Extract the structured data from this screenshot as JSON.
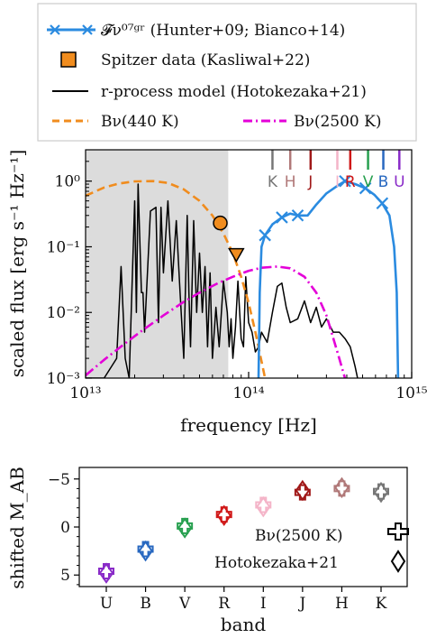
{
  "chart_data": [
    {
      "type": "line",
      "xlabel": "frequency [Hz]",
      "ylabel": "scaled flux [erg s⁻¹ Hz⁻¹]",
      "xscale": "log",
      "yscale": "log",
      "xlim": [
        10000000000000.0,
        1000000000000000.0
      ],
      "ylim": [
        0.001,
        3
      ],
      "xticks": [
        {
          "v": 10000000000000.0,
          "label": "10¹³"
        },
        {
          "v": 100000000000000.0,
          "label": "10¹⁴"
        },
        {
          "v": 1000000000000000.0,
          "label": "10¹⁵"
        }
      ],
      "yticks": [
        {
          "v": 1,
          "label": "10⁰"
        },
        {
          "v": 0.1,
          "label": "10⁻¹"
        },
        {
          "v": 0.01,
          "label": "10⁻²"
        },
        {
          "v": 0.001,
          "label": "10⁻³"
        }
      ],
      "shaded_region": {
        "x": [
          10000000000000.0,
          75000000000000.0
        ],
        "color": "#dcdcdc"
      },
      "legend": {
        "placement": "top",
        "entries": [
          {
            "label": "𝓕ν⁰⁷ᵍʳ (Hunter+09; Bianco+14)",
            "color": "#2b8be0",
            "style": "line-x"
          },
          {
            "label": "Spitzer data (Kasliwal+22)",
            "color": "#f08c1e",
            "style": "marker-square"
          },
          {
            "label": "r-process model (Hotokezaka+21)",
            "color": "#000000",
            "style": "line"
          },
          {
            "label": "Bν(440 K)",
            "color": "#f08c1e",
            "style": "dashed"
          },
          {
            "label": "Bν(2500 K)",
            "color": "#e400d8",
            "style": "dashdot"
          }
        ]
      },
      "band_markers": [
        {
          "label": "K",
          "x": 140000000000000.0,
          "color": "#777777"
        },
        {
          "label": "H",
          "x": 180000000000000.0,
          "color": "#b07878"
        },
        {
          "label": "J",
          "x": 240000000000000.0,
          "color": "#a01818"
        },
        {
          "label": "I",
          "x": 350000000000000.0,
          "color": "#f4b4c8"
        },
        {
          "label": "R",
          "x": 420000000000000.0,
          "color": "#d01818"
        },
        {
          "label": "V",
          "x": 540000000000000.0,
          "color": "#28a050"
        },
        {
          "label": "B",
          "x": 670000000000000.0,
          "color": "#2868c0"
        },
        {
          "label": "U",
          "x": 840000000000000.0,
          "color": "#8a2cc8"
        }
      ],
      "series": [
        {
          "name": "Bν(440 K)",
          "color": "#f08c1e",
          "dash": "dashed",
          "x": [
            10000000000000.0,
            13000000000000.0,
            16000000000000.0,
            20000000000000.0,
            26000000000000.0,
            32000000000000.0,
            40000000000000.0,
            50000000000000.0,
            60000000000000.0,
            70000000000000.0,
            80000000000000.0,
            90000000000000.0,
            100000000000000.0,
            110000000000000.0,
            120000000000000.0,
            130000000000000.0
          ],
          "y": [
            0.6,
            0.8,
            0.92,
            0.99,
            1.0,
            0.94,
            0.75,
            0.5,
            0.3,
            0.16,
            0.08,
            0.035,
            0.014,
            0.005,
            0.0018,
            0.0007
          ]
        },
        {
          "name": "Bν(2500 K)",
          "color": "#e400d8",
          "dash": "dashdot",
          "x": [
            10000000000000.0,
            13000000000000.0,
            17000000000000.0,
            22000000000000.0,
            30000000000000.0,
            40000000000000.0,
            50000000000000.0,
            65000000000000.0,
            80000000000000.0,
            100000000000000.0,
            120000000000000.0,
            150000000000000.0,
            180000000000000.0,
            220000000000000.0,
            260000000000000.0,
            300000000000000.0,
            350000000000000.0,
            400000000000000.0
          ],
          "y": [
            0.0011,
            0.0019,
            0.0032,
            0.0052,
            0.009,
            0.0145,
            0.02,
            0.028,
            0.035,
            0.043,
            0.048,
            0.05,
            0.047,
            0.035,
            0.02,
            0.009,
            0.0025,
            0.0008
          ]
        },
        {
          "name": "𝓕ν⁰⁷ᵍʳ",
          "color": "#2b8be0",
          "dash": "solid",
          "x": [
            115000000000000.0,
            117000000000000.0,
            120000000000000.0,
            126000000000000.0,
            140000000000000.0,
            160000000000000.0,
            180000000000000.0,
            200000000000000.0,
            230000000000000.0,
            260000000000000.0,
            300000000000000.0,
            350000000000000.0,
            390000000000000.0,
            450000000000000.0,
            520000000000000.0,
            590000000000000.0,
            660000000000000.0,
            730000000000000.0,
            780000000000000.0,
            810000000000000.0,
            825000000000000.0
          ],
          "y": [
            0.001,
            0.02,
            0.1,
            0.15,
            0.22,
            0.28,
            0.32,
            0.3,
            0.3,
            0.44,
            0.65,
            0.85,
            1.0,
            0.9,
            0.78,
            0.62,
            0.46,
            0.3,
            0.1,
            0.02,
            0.001
          ]
        },
        {
          "name": "r-process model (Hotokezaka+21)",
          "color": "#000000",
          "dash": "solid",
          "x": [
            10000000000000.0,
            13000000000000.0,
            15500000000000.0,
            16500000000000.0,
            17500000000000.0,
            18500000000000.0,
            20000000000000.0,
            20500000000000.0,
            21000000000000.0,
            22000000000000.0,
            22500000000000.0,
            23000000000000.0,
            25000000000000.0,
            27000000000000.0,
            28000000000000.0,
            29000000000000.0,
            30000000000000.0,
            32000000000000.0,
            34000000000000.0,
            36000000000000.0,
            38000000000000.0,
            40000000000000.0,
            42000000000000.0,
            43000000000000.0,
            44000000000000.0,
            46000000000000.0,
            48000000000000.0,
            50000000000000.0,
            52000000000000.0,
            54000000000000.0,
            56000000000000.0,
            58000000000000.0,
            60000000000000.0,
            63000000000000.0,
            66000000000000.0,
            70000000000000.0,
            74000000000000.0,
            76000000000000.0,
            78000000000000.0,
            80000000000000.0,
            83000000000000.0,
            86000000000000.0,
            90000000000000.0,
            93000000000000.0,
            96000000000000.0,
            100000000000000.0,
            105000000000000.0,
            110000000000000.0,
            115000000000000.0,
            120000000000000.0,
            130000000000000.0,
            140000000000000.0,
            150000000000000.0,
            160000000000000.0,
            170000000000000.0,
            180000000000000.0,
            200000000000000.0,
            220000000000000.0,
            240000000000000.0,
            260000000000000.0,
            280000000000000.0,
            300000000000000.0,
            330000000000000.0,
            360000000000000.0,
            390000000000000.0,
            420000000000000.0,
            450000000000000.0,
            470000000000000.0
          ],
          "y": [
            0.001,
            0.001,
            0.002,
            0.05,
            0.002,
            0.001,
            0.5,
            0.01,
            0.9,
            0.02,
            0.02,
            0.005,
            0.35,
            0.4,
            0.007,
            0.4,
            0.04,
            0.5,
            0.03,
            0.25,
            0.02,
            0.002,
            0.3,
            0.02,
            0.003,
            0.25,
            0.01,
            0.08,
            0.01,
            0.05,
            0.003,
            0.04,
            0.002,
            0.012,
            0.003,
            0.03,
            0.01,
            0.003,
            0.008,
            0.002,
            0.006,
            0.03,
            0.004,
            0.003,
            0.035,
            0.007,
            0.005,
            0.0025,
            0.003,
            0.005,
            0.0035,
            0.01,
            0.025,
            0.028,
            0.012,
            0.007,
            0.008,
            0.015,
            0.007,
            0.012,
            0.006,
            0.008,
            0.005,
            0.005,
            0.004,
            0.003,
            0.0015,
            0.0009
          ]
        }
      ],
      "markers": [
        {
          "name": "Spitzer data point 1",
          "x": 67000000000000.0,
          "y": 0.23,
          "shape": "circle",
          "color": "#f08c1e"
        },
        {
          "name": "Spitzer data point 2",
          "x": 84000000000000.0,
          "y": 0.075,
          "shape": "triangle-down",
          "color": "#f08c1e"
        }
      ]
    },
    {
      "type": "scatter",
      "xlabel": "band",
      "ylabel": "shifted M_AB",
      "categories": [
        "U",
        "B",
        "V",
        "R",
        "I",
        "J",
        "H",
        "K"
      ],
      "ylim": [
        6.2,
        -6.2
      ],
      "yticks": [
        {
          "v": -5,
          "label": "−5"
        },
        {
          "v": 0,
          "label": "0"
        },
        {
          "v": 5,
          "label": "5"
        }
      ],
      "legend": {
        "placement": "bottom-right",
        "entries": [
          {
            "label": "Bν(2500 K)",
            "marker": "plus"
          },
          {
            "label": "Hotokezaka+21",
            "marker": "diamond"
          }
        ]
      },
      "colors": [
        "#8a2cc8",
        "#2868c0",
        "#28a050",
        "#d01818",
        "#f4b4c8",
        "#a01818",
        "#b07878",
        "#777777"
      ],
      "series": [
        {
          "name": "Bν(2500 K)",
          "marker": "plus",
          "values": [
            4.6,
            2.3,
            -0.1,
            -1.3,
            -2.3,
            -3.6,
            -4.0,
            -3.7
          ]
        },
        {
          "name": "Hotokezaka+21",
          "marker": "diamond",
          "values": [
            4.8,
            2.5,
            0.1,
            -1.2,
            -2.1,
            -3.8,
            -4.1,
            -3.6
          ]
        }
      ]
    }
  ]
}
